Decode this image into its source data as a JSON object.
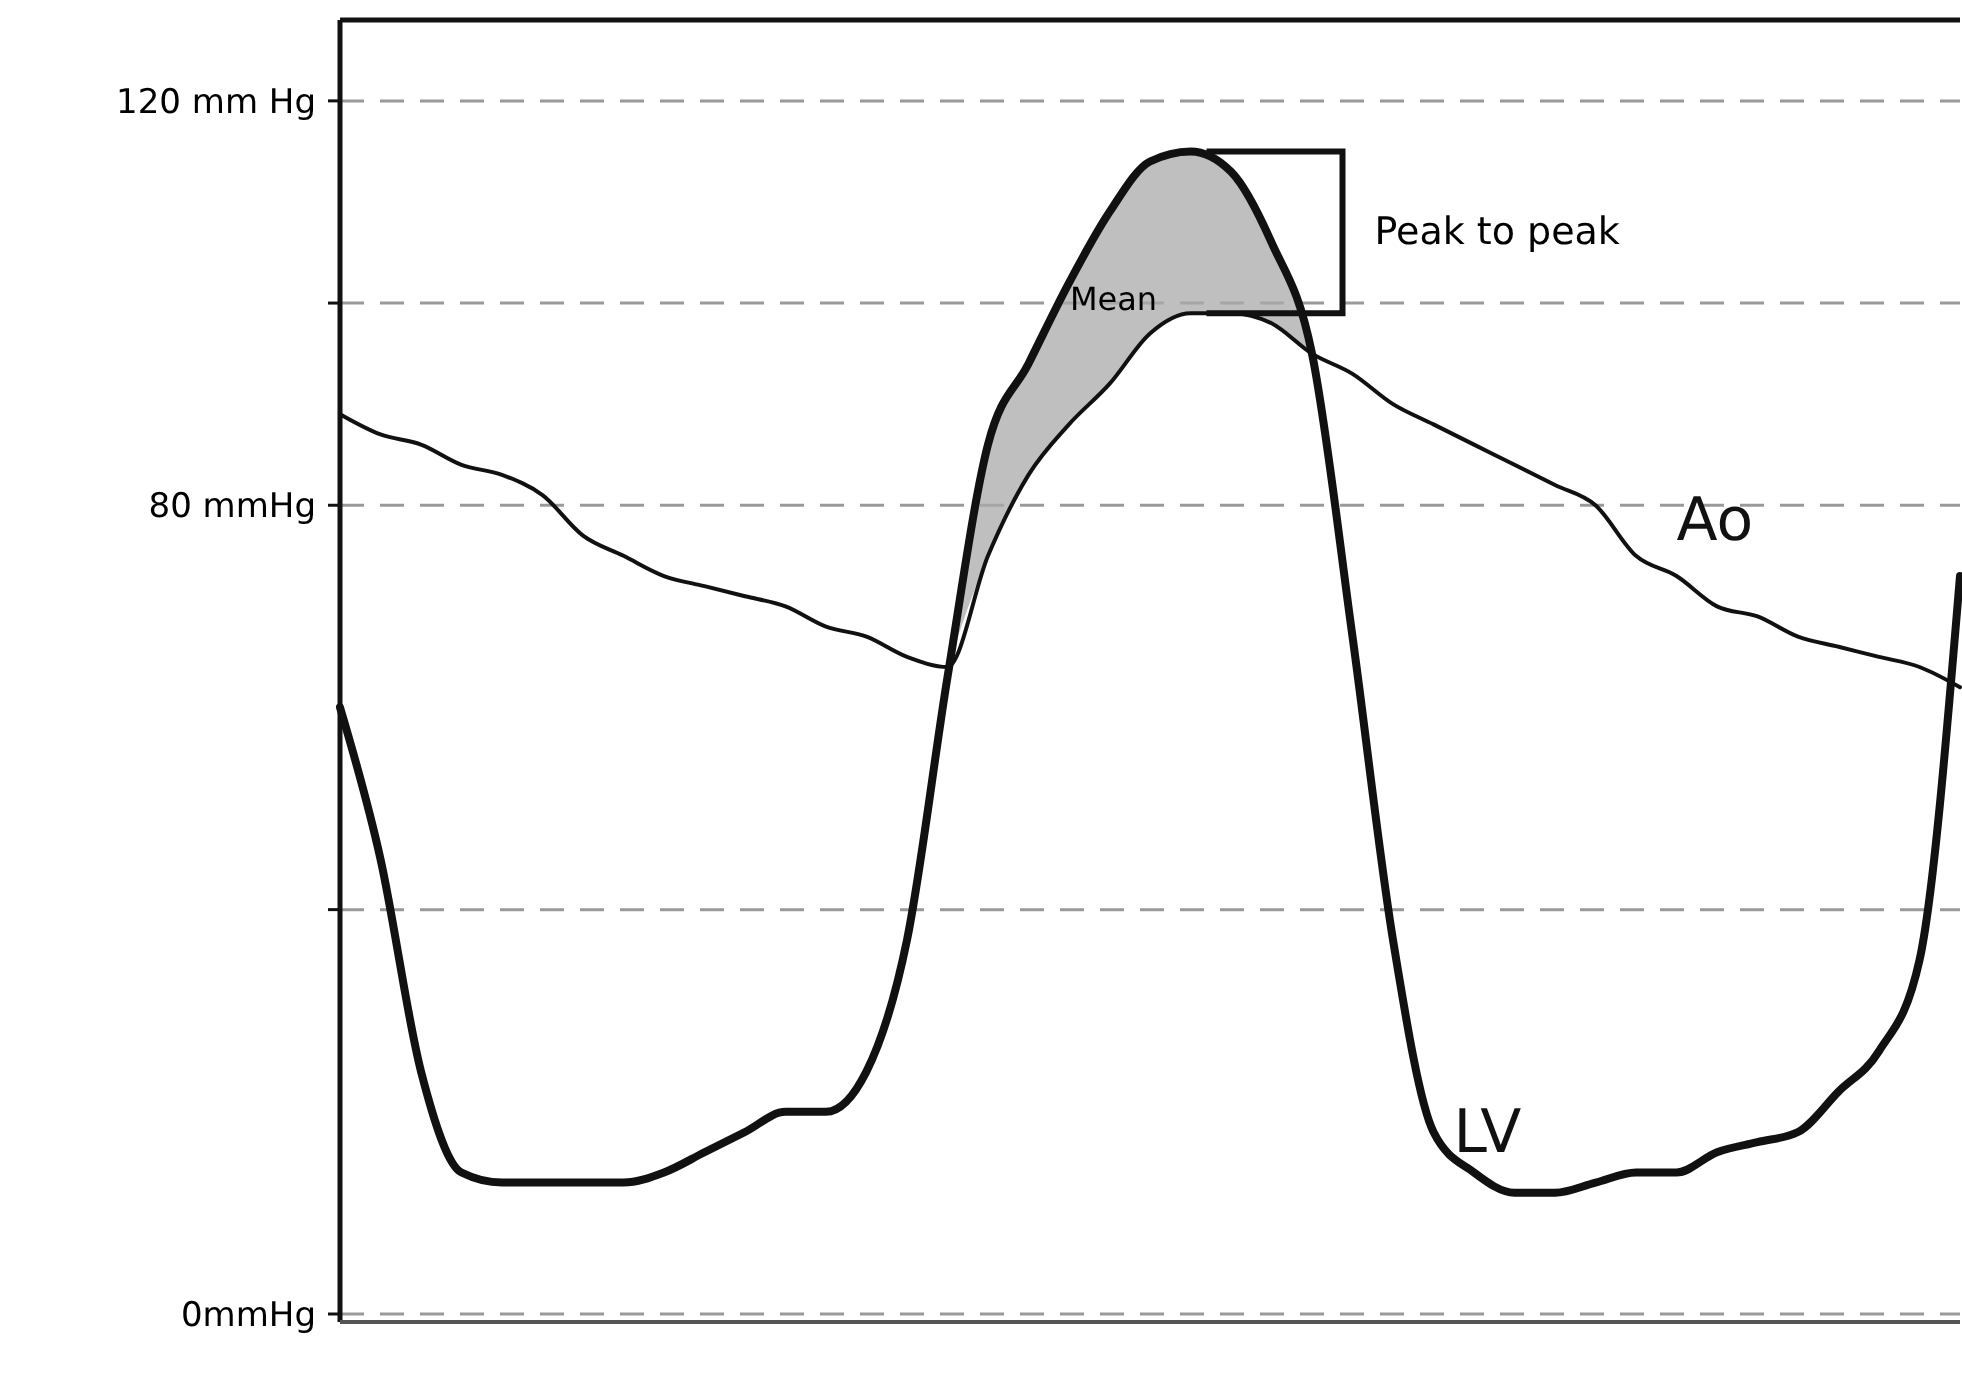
{
  "chart_data": {
    "type": "line",
    "categories": [
      null,
      null,
      null,
      null,
      null,
      null,
      null,
      null,
      null,
      null,
      null,
      null,
      null,
      null,
      null,
      null,
      null,
      null,
      null,
      null,
      null,
      null,
      null,
      null,
      null,
      null,
      null,
      null,
      null,
      null,
      null,
      null,
      null,
      null,
      null,
      null,
      null,
      null,
      null,
      null,
      null
    ],
    "series": [
      {
        "name": "LV",
        "color": "#111111",
        "values": [
          60,
          45,
          24,
          14,
          13,
          13,
          13,
          13,
          14,
          16,
          18,
          20,
          20,
          24,
          37,
          63,
          86,
          94,
          102,
          109,
          114,
          115,
          113,
          106,
          95,
          67,
          37,
          18,
          14,
          12,
          12,
          13,
          14,
          14,
          16,
          17,
          18,
          22,
          26,
          35,
          73
        ],
        "lower": [
          null,
          null,
          null,
          null,
          null,
          null,
          null,
          null,
          null,
          null,
          null,
          null,
          null,
          null,
          null,
          64,
          75,
          83,
          88,
          92,
          97,
          99,
          99,
          98,
          95,
          null,
          null,
          null,
          null,
          null,
          null,
          null,
          null,
          null,
          null,
          null,
          null,
          null,
          null,
          null,
          null
        ],
        "upper": [
          null,
          null,
          null,
          null,
          null,
          null,
          null,
          null,
          null,
          null,
          null,
          null,
          null,
          null,
          null,
          64,
          86,
          94,
          102,
          109,
          114,
          115,
          113,
          106,
          95,
          null,
          null,
          null,
          null,
          null,
          null,
          null,
          null,
          null,
          null,
          null,
          null,
          null,
          null,
          null,
          null
        ]
      },
      {
        "name": "Ao",
        "color": "#111111",
        "values": [
          89,
          87,
          86,
          84,
          83,
          81,
          77,
          75,
          73,
          72,
          71,
          70,
          68,
          67,
          65,
          64,
          75,
          83,
          88,
          92,
          97,
          99,
          99,
          98,
          95,
          93,
          90,
          88,
          86,
          84,
          82,
          80,
          75,
          73,
          70,
          69,
          67,
          66,
          65,
          64,
          62
        ]
      }
    ],
    "ylim": [
      0,
      128
    ],
    "yticks": [
      {
        "value": 0,
        "label": "0mmHg"
      },
      {
        "value": 40,
        "label": null
      },
      {
        "value": 80,
        "label": "80 mmHg"
      },
      {
        "value": 100,
        "label": null
      },
      {
        "value": 120,
        "label": "120 mm Hg"
      }
    ],
    "grid": "y",
    "legend": false,
    "tick_labels": "y",
    "marker": "none",
    "line_style": "solid",
    "annotations": [
      "Mean",
      "Peak to peak"
    ]
  }
}
